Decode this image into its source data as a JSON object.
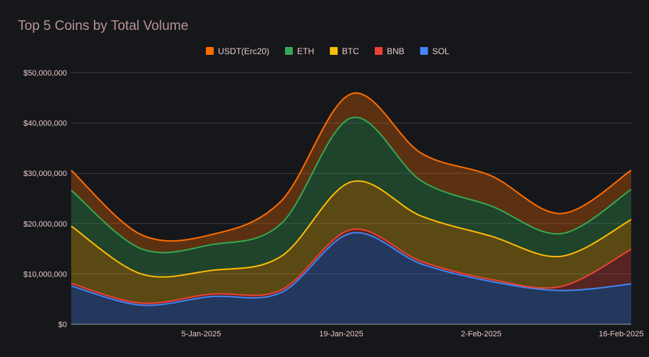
{
  "chart_data": {
    "type": "area",
    "stacked": true,
    "title": "Top 5 Coins by Total Volume",
    "x": [
      "23-Dec-2024",
      "30-Dec-2024",
      "6-Jan-2025",
      "13-Jan-2025",
      "20-Jan-2025",
      "27-Jan-2025",
      "3-Feb-2025",
      "10-Feb-2025",
      "17-Feb-2025"
    ],
    "x_ticks": [
      "5-Jan-2025",
      "19-Jan-2025",
      "2-Feb-2025",
      "16-Feb-2025"
    ],
    "y_ticks": [
      "$0",
      "$10,000,000",
      "$20,000,000",
      "$30,000,000",
      "$40,000,000",
      "$50,000,000"
    ],
    "ylim": [
      0,
      50000000
    ],
    "grid": true,
    "legend_position": "top",
    "series": [
      {
        "name": "SOL",
        "color": "#4285f4",
        "values": [
          7600000,
          3800000,
          5500000,
          6300000,
          18100000,
          12000000,
          8500000,
          6700000,
          8000000
        ]
      },
      {
        "name": "BNB",
        "color": "#ea4335",
        "values": [
          500000,
          400000,
          500000,
          500000,
          700000,
          500000,
          400000,
          800000,
          6900000
        ]
      },
      {
        "name": "BTC",
        "color": "#fbbc04",
        "values": [
          11400000,
          5800000,
          4700000,
          6700000,
          9500000,
          9000000,
          8600000,
          6000000,
          5900000
        ]
      },
      {
        "name": "ETH",
        "color": "#34a853",
        "values": [
          7100000,
          5000000,
          5100000,
          6500000,
          12700000,
          7000000,
          6000000,
          4500000,
          6000000
        ]
      },
      {
        "name": "USDT(Erc20)",
        "color": "#ff6d01",
        "values": [
          4000000,
          2800000,
          2000000,
          4500000,
          4800000,
          5500000,
          6000000,
          4000000,
          3800000
        ]
      }
    ],
    "legend_order": [
      "USDT(Erc20)",
      "ETH",
      "BTC",
      "BNB",
      "SOL"
    ]
  }
}
